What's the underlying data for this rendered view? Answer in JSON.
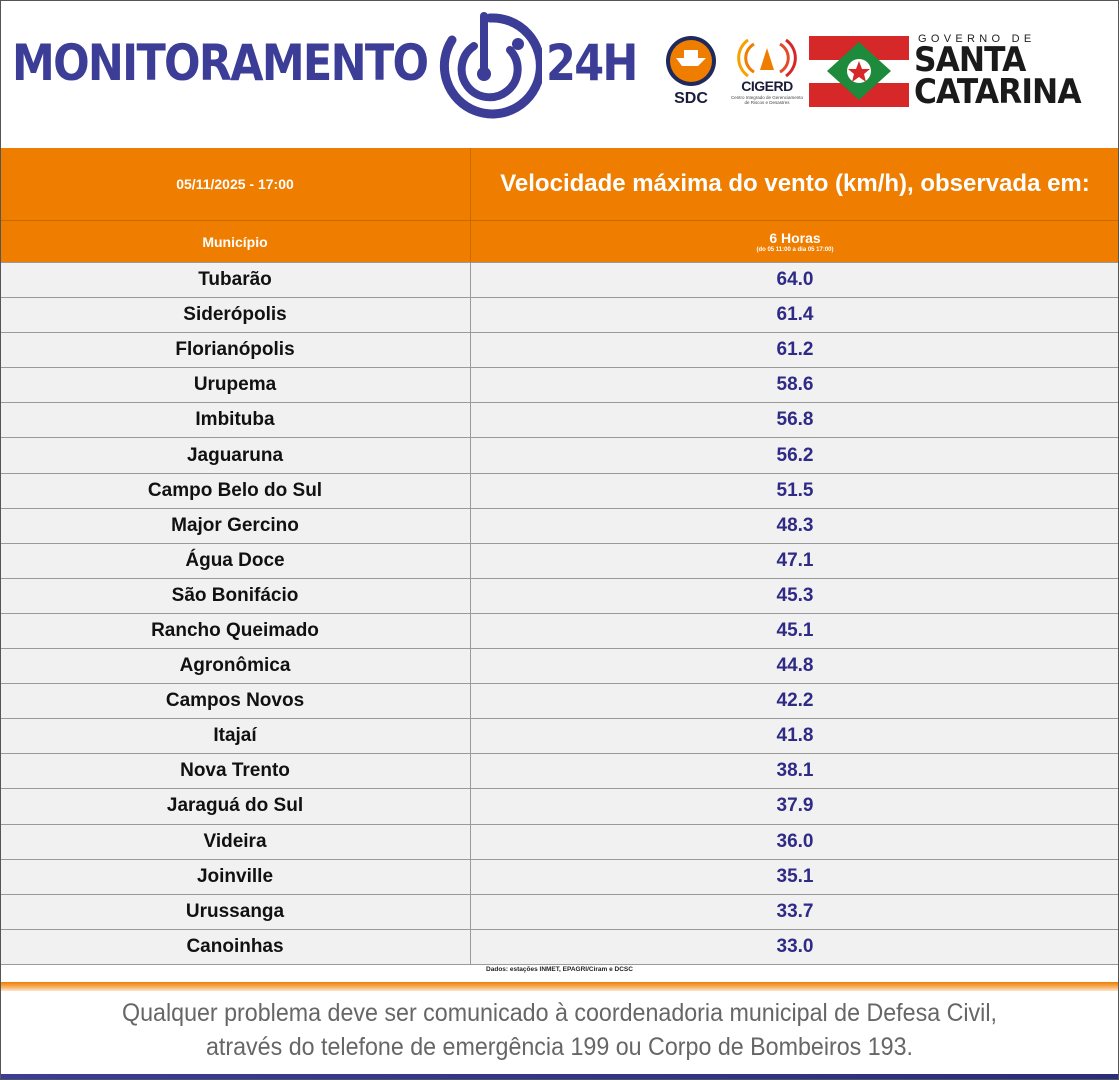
{
  "header": {
    "brand_title": "MONITORAMENTO",
    "brand_24h": "24H",
    "sdc_label": "SDC",
    "cigerd_label": "CIGERD",
    "cigerd_sub": "Centro Integrado de Gerenciamento de Riscos e Desastres",
    "gov_small": "GOVERNO DE",
    "gov_big_line1": "SANTA",
    "gov_big_line2": "CATARINA",
    "colors": {
      "brand": "#3b3d96",
      "accent": "#ef7d00",
      "flag_red": "#d62828",
      "flag_green": "#1e8a3c"
    },
    "icons": [
      "monitoring-radar-logo-icon",
      "sdc-logo-icon",
      "cigerd-logo-icon",
      "santa-catarina-flag-icon"
    ]
  },
  "table": {
    "date_label": "05/11/2025 - 17:00",
    "main_header": "Velocidade máxima do vento (km/h), observada em:",
    "municipio_header": "Município",
    "hours_header": "6 Horas",
    "hours_sub": "(do 05 11:00 a dia 05 17:00)",
    "rows": [
      {
        "municipio": "Tubarão",
        "valor": "64.0"
      },
      {
        "municipio": "Siderópolis",
        "valor": "61.4"
      },
      {
        "municipio": "Florianópolis",
        "valor": "61.2"
      },
      {
        "municipio": "Urupema",
        "valor": "58.6"
      },
      {
        "municipio": "Imbituba",
        "valor": "56.8"
      },
      {
        "municipio": "Jaguaruna",
        "valor": "56.2"
      },
      {
        "municipio": "Campo Belo do Sul",
        "valor": "51.5"
      },
      {
        "municipio": "Major Gercino",
        "valor": "48.3"
      },
      {
        "municipio": "Água Doce",
        "valor": "47.1"
      },
      {
        "municipio": "São Bonifácio",
        "valor": "45.3"
      },
      {
        "municipio": "Rancho Queimado",
        "valor": "45.1"
      },
      {
        "municipio": "Agronômica",
        "valor": "44.8"
      },
      {
        "municipio": "Campos Novos",
        "valor": "42.2"
      },
      {
        "municipio": "Itajaí",
        "valor": "41.8"
      },
      {
        "municipio": "Nova Trento",
        "valor": "38.1"
      },
      {
        "municipio": "Jaraguá do Sul",
        "valor": "37.9"
      },
      {
        "municipio": "Videira",
        "valor": "36.0"
      },
      {
        "municipio": "Joinville",
        "valor": "35.1"
      },
      {
        "municipio": "Urussanga",
        "valor": "33.7"
      },
      {
        "municipio": "Canoinhas",
        "valor": "33.0"
      }
    ],
    "source_note": "Dados: estações INMET, EPAGRI/Ciram e DCSC"
  },
  "footer": {
    "line1": "Qualquer problema deve ser comunicado à coordenadoria municipal de Defesa Civil,",
    "line2": "através do telefone de emergência 199 ou Corpo de Bombeiros 193."
  }
}
